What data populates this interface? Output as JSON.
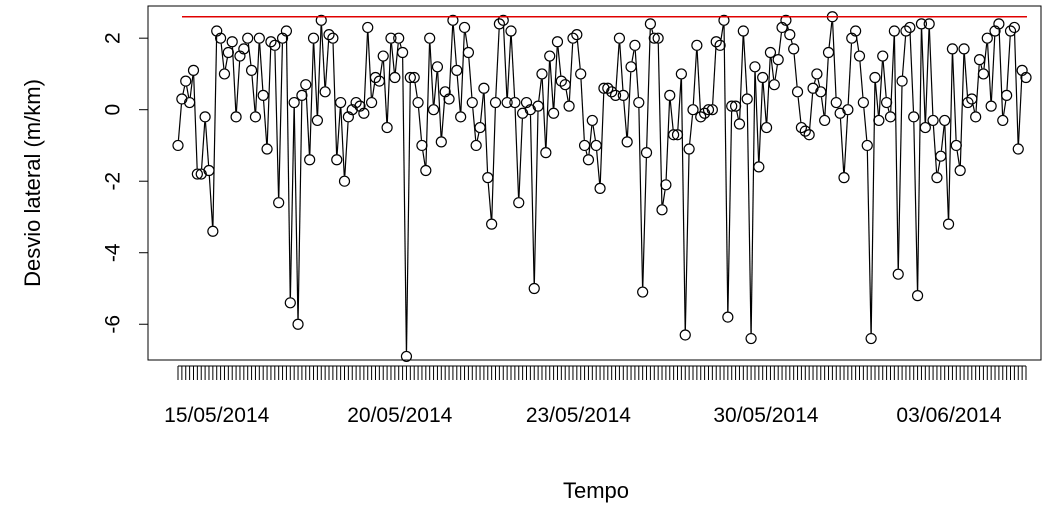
{
  "chart_data": {
    "type": "scatter",
    "title": "",
    "xlabel": "Tempo",
    "ylabel": "Desvio lateral (m/km)",
    "ylim": [
      -7.0,
      2.9
    ],
    "yticks": [
      2,
      0,
      -2,
      -4,
      -6
    ],
    "ytick_labels": [
      "2",
      "0",
      "-2",
      "-4",
      "-6"
    ],
    "x_date_labels": [
      "15/05/2014",
      "20/05/2014",
      "23/05/2014",
      "30/05/2014",
      "03/06/2014"
    ],
    "x_date_label_positions": [
      0.04,
      0.245,
      0.445,
      0.655,
      0.86
    ],
    "reference_line": 2.6,
    "reference_line_color": "#e00000",
    "point_color": "#000000",
    "values": [
      -1.0,
      0.3,
      0.8,
      0.2,
      1.1,
      -1.8,
      -1.8,
      -0.2,
      -1.7,
      -3.4,
      2.2,
      2.0,
      1.0,
      1.6,
      1.9,
      -0.2,
      1.5,
      1.7,
      2.0,
      1.1,
      -0.2,
      2.0,
      0.4,
      -1.1,
      1.9,
      1.8,
      -2.6,
      2.0,
      2.2,
      -5.4,
      0.2,
      -6.0,
      0.4,
      0.7,
      -1.4,
      2.0,
      -0.3,
      2.5,
      0.5,
      2.1,
      2.0,
      -1.4,
      0.2,
      -2.0,
      -0.2,
      0.0,
      0.2,
      0.1,
      -0.1,
      2.3,
      0.2,
      0.9,
      0.8,
      1.5,
      -0.5,
      2.0,
      0.9,
      2.0,
      1.6,
      -6.9,
      0.9,
      0.9,
      0.2,
      -1.0,
      -1.7,
      2.0,
      0.0,
      1.2,
      -0.9,
      0.5,
      0.3,
      2.5,
      1.1,
      -0.2,
      2.3,
      1.6,
      0.2,
      -1.0,
      -0.5,
      0.6,
      -1.9,
      -3.2,
      0.2,
      2.4,
      2.5,
      0.2,
      2.2,
      0.2,
      -2.6,
      -0.1,
      0.2,
      0.0,
      -5.0,
      0.1,
      1.0,
      -1.2,
      1.5,
      -0.1,
      1.9,
      0.8,
      0.7,
      0.1,
      2.0,
      2.1,
      1.0,
      -1.0,
      -1.4,
      -0.3,
      -1.0,
      -2.2,
      0.6,
      0.6,
      0.5,
      0.4,
      2.0,
      0.4,
      -0.9,
      1.2,
      1.8,
      0.2,
      -5.1,
      -1.2,
      2.4,
      2.0,
      2.0,
      -2.8,
      -2.1,
      0.4,
      -0.7,
      -0.7,
      1.0,
      -6.3,
      -1.1,
      0.0,
      1.8,
      -0.2,
      -0.1,
      0.0,
      0.0,
      1.9,
      1.8,
      2.5,
      -5.8,
      0.1,
      0.1,
      -0.4,
      2.2,
      0.3,
      -6.4,
      1.2,
      -1.6,
      0.9,
      -0.5,
      1.6,
      0.7,
      1.4,
      2.3,
      2.5,
      2.1,
      1.7,
      0.5,
      -0.5,
      -0.6,
      -0.7,
      0.6,
      1.0,
      0.5,
      -0.3,
      1.6,
      2.6,
      0.2,
      -0.1,
      -1.9,
      0.0,
      2.0,
      2.2,
      1.5,
      0.2,
      -1.0,
      -6.4,
      0.9,
      -0.3,
      1.5,
      0.2,
      -0.2,
      2.2,
      -4.6,
      0.8,
      2.2,
      2.3,
      -0.2,
      -5.2,
      2.4,
      -0.5,
      2.4,
      -0.3,
      -1.9,
      -1.3,
      -0.3,
      -3.2,
      1.7,
      -1.0,
      -1.7,
      1.7,
      0.2,
      0.3,
      -0.2,
      1.4,
      1.0,
      2.0,
      0.1,
      2.2,
      2.4,
      -0.3,
      0.4,
      2.2,
      2.3,
      -1.1,
      1.1,
      0.9
    ]
  }
}
